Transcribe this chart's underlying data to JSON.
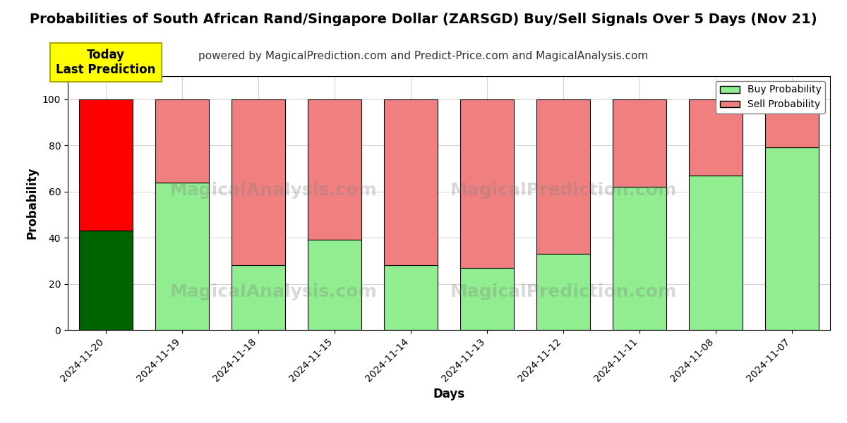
{
  "title": "Probabilities of South African Rand/Singapore Dollar (ZARSGD) Buy/Sell Signals Over 5 Days (Nov 21)",
  "subtitle": "powered by MagicalPrediction.com and Predict-Price.com and MagicalAnalysis.com",
  "xlabel": "Days",
  "ylabel": "Probability",
  "categories": [
    "2024-11-20",
    "2024-11-19",
    "2024-11-18",
    "2024-11-15",
    "2024-11-14",
    "2024-11-13",
    "2024-11-12",
    "2024-11-11",
    "2024-11-08",
    "2024-11-07"
  ],
  "buy_values": [
    43,
    64,
    28,
    39,
    28,
    27,
    33,
    62,
    67,
    79
  ],
  "sell_values": [
    57,
    36,
    72,
    61,
    72,
    73,
    67,
    38,
    33,
    21
  ],
  "buy_colors_normal": "#90EE90",
  "sell_colors_normal": "#F08080",
  "buy_color_today": "#006400",
  "sell_color_today": "#FF0000",
  "bar_edge_color": "#000000",
  "ylim": [
    0,
    110
  ],
  "yticks": [
    0,
    20,
    40,
    60,
    80,
    100
  ],
  "dashed_line_y": 110,
  "legend_buy_label": "Buy Probability",
  "legend_sell_label": "Sell Probability",
  "annotation_text": "Today\nLast Prediction",
  "annotation_bg_color": "#FFFF00",
  "title_fontsize": 14,
  "subtitle_fontsize": 11,
  "label_fontsize": 12,
  "tick_fontsize": 10,
  "figsize": [
    12,
    6
  ],
  "dpi": 100
}
